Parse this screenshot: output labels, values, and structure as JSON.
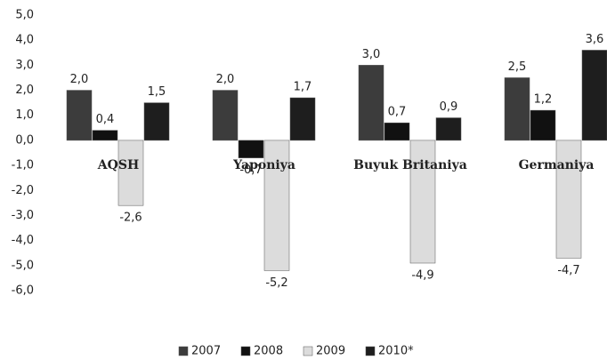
{
  "chart_data": {
    "type": "bar",
    "categories": [
      "AQSH",
      "Yaponiya",
      "Buyuk Britaniya",
      "Germaniya"
    ],
    "series": [
      {
        "name": "2007",
        "color": "#3c3c3c",
        "values": [
          2.0,
          2.0,
          3.0,
          2.5
        ],
        "value_labels": [
          "2,0",
          "2,0",
          "3,0",
          "2,5"
        ]
      },
      {
        "name": "2008",
        "color": "#111111",
        "values": [
          0.4,
          -0.7,
          0.7,
          1.2
        ],
        "value_labels": [
          "0,4",
          "-0,7",
          "0,7",
          "1,2"
        ]
      },
      {
        "name": "2009",
        "color": "#dcdcdc",
        "values": [
          -2.6,
          -5.2,
          -4.9,
          -4.7
        ],
        "value_labels": [
          "-2,6",
          "-5,2",
          "-4,9",
          "-4,7"
        ]
      },
      {
        "name": "2010*",
        "color": "#1e1e1e",
        "values": [
          1.5,
          1.7,
          0.9,
          3.6
        ],
        "value_labels": [
          "1,5",
          "1,7",
          "0,9",
          "3,6"
        ]
      }
    ],
    "ylim": [
      -6,
      5
    ],
    "yticks": [
      {
        "value": 5,
        "label": "5,0"
      },
      {
        "value": 4,
        "label": "4,0"
      },
      {
        "value": 3,
        "label": "3,0"
      },
      {
        "value": 2,
        "label": "2,0"
      },
      {
        "value": 1,
        "label": "1,0"
      },
      {
        "value": 0,
        "label": "0,0"
      },
      {
        "value": -1,
        "label": "-1,0"
      },
      {
        "value": -2,
        "label": "-2,0"
      },
      {
        "value": -3,
        "label": "-3,0"
      },
      {
        "value": -4,
        "label": "-4,0"
      },
      {
        "value": -5,
        "label": "-5,0"
      },
      {
        "value": -6,
        "label": "-6,0"
      }
    ],
    "grid": false,
    "legend": "bottom"
  }
}
